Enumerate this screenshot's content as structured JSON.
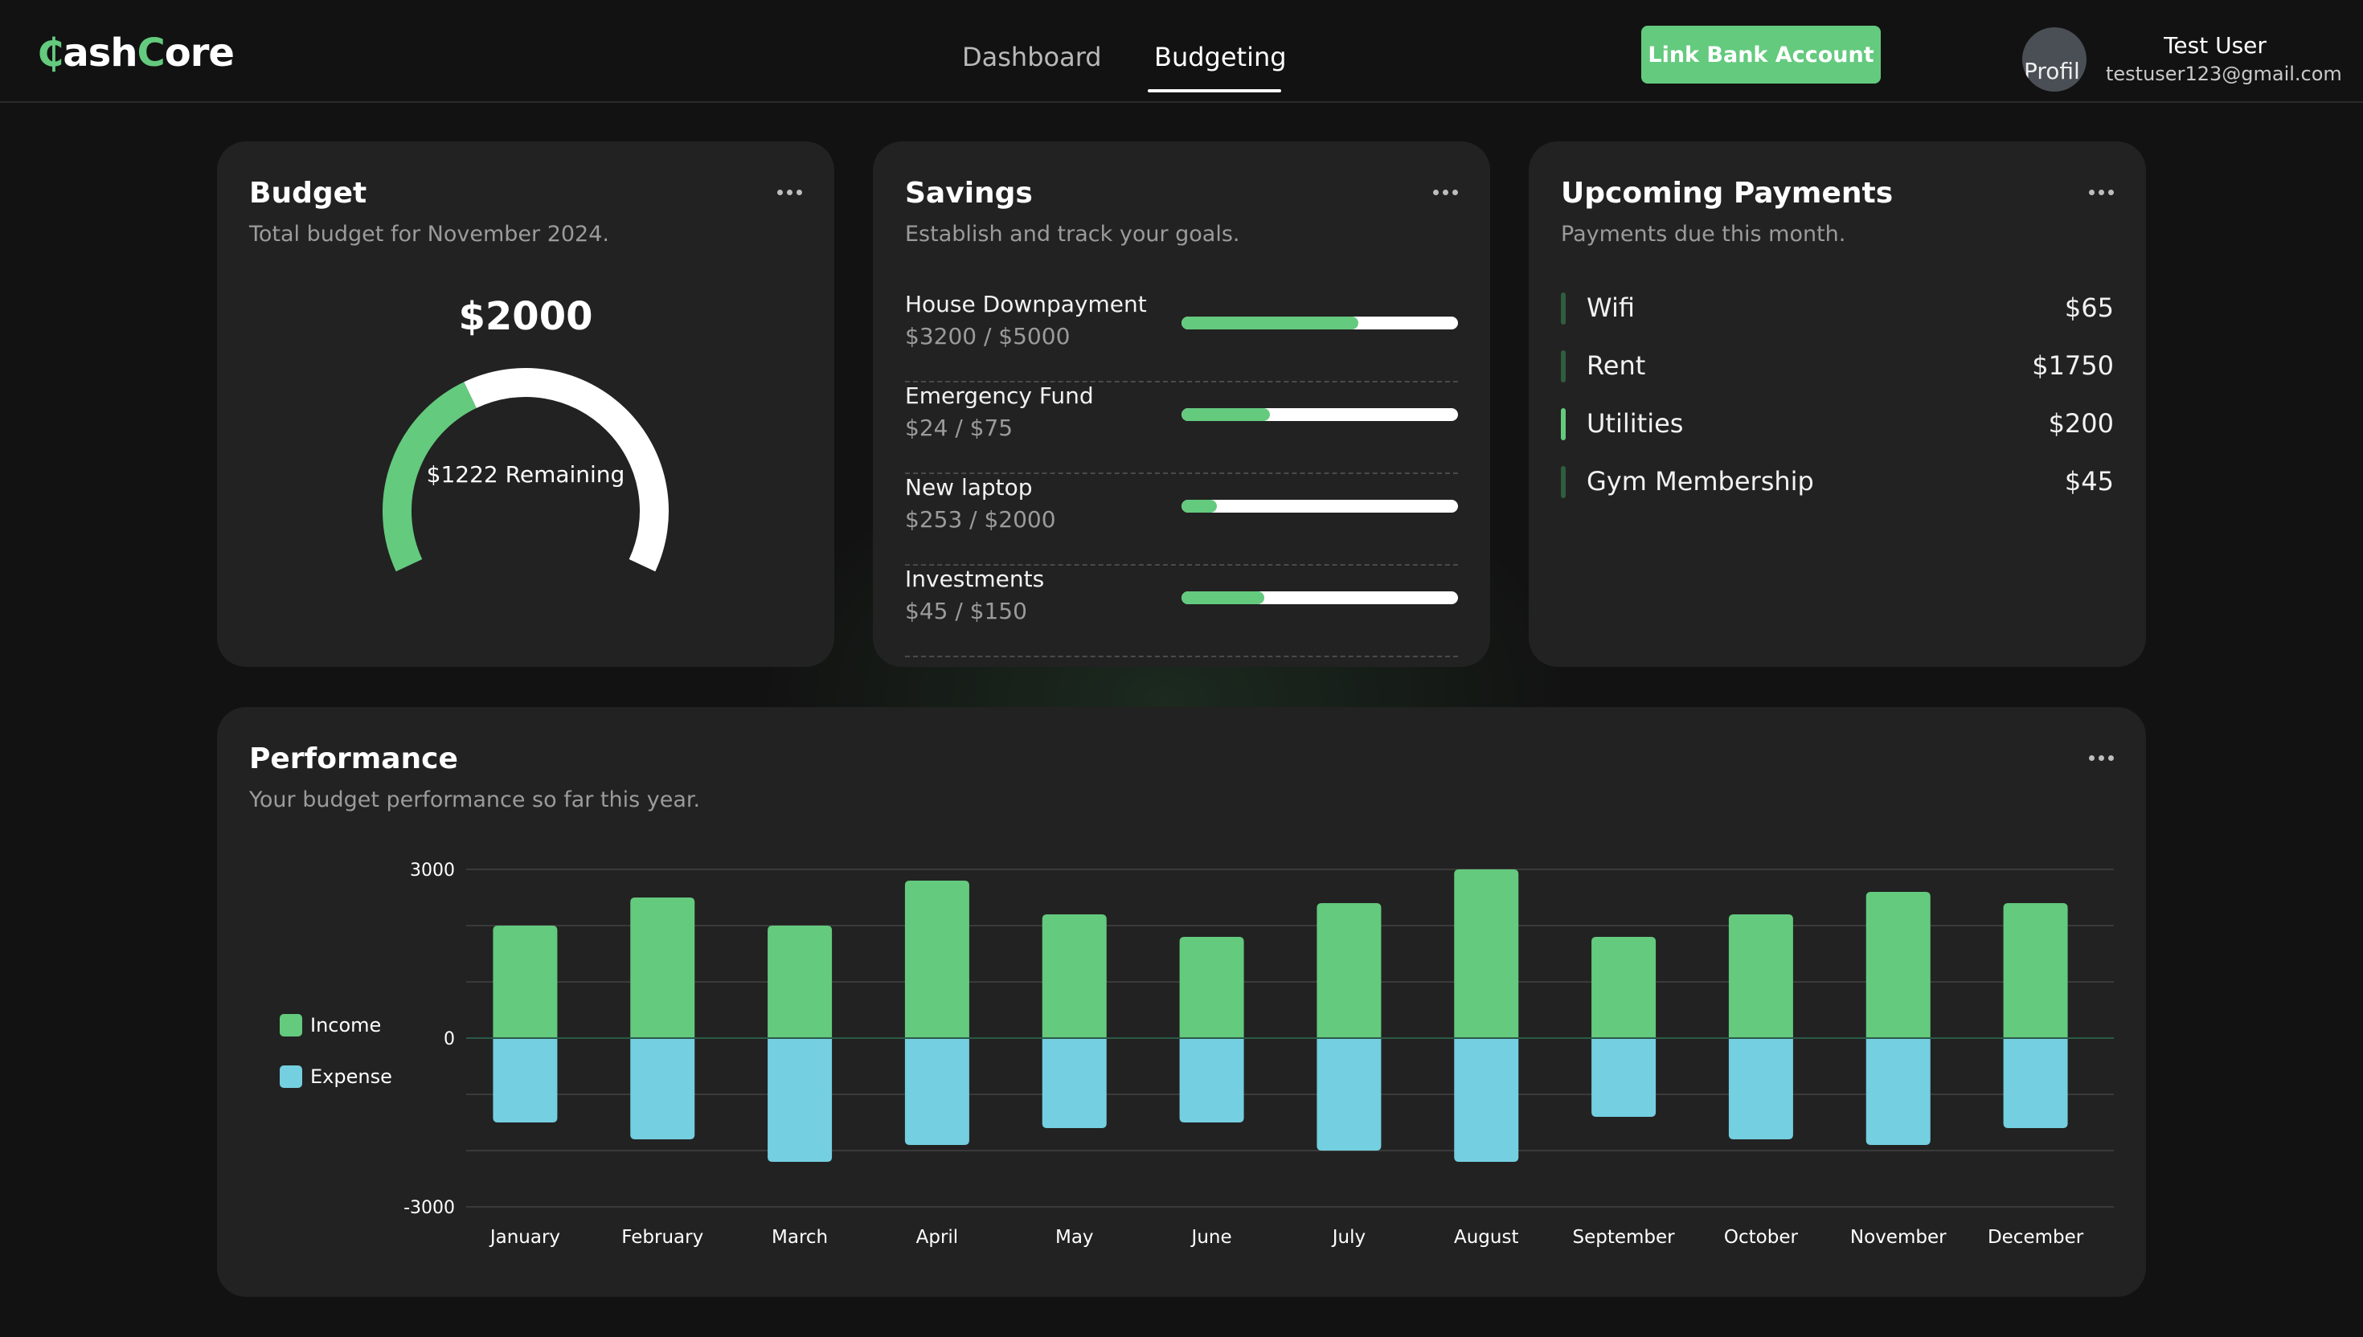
{
  "app": {
    "logo_glyph": "₵",
    "logo_rest_1": "ash",
    "logo_c": "C",
    "logo_rest_2": "ore"
  },
  "nav": {
    "tabs": [
      {
        "label": "Dashboard",
        "active": false
      },
      {
        "label": "Budgeting",
        "active": true
      }
    ]
  },
  "header": {
    "link_bank_label": "Link Bank Account",
    "avatar_alt": "Profil",
    "user_name": "Test User",
    "user_email": "testuser123@gmail.com"
  },
  "budget": {
    "title": "Budget",
    "subtitle": "Total budget for November 2024.",
    "total": "$2000",
    "remaining_text": "$1222 Remaining",
    "total_value": 2000,
    "remaining_value": 1222
  },
  "savings": {
    "title": "Savings",
    "subtitle": "Establish and track your goals.",
    "goals": [
      {
        "name": "House Downpayment",
        "amount": "$3200 / $5000",
        "current": 3200,
        "target": 5000
      },
      {
        "name": "Emergency Fund",
        "amount": "$24 / $75",
        "current": 24,
        "target": 75
      },
      {
        "name": "New laptop",
        "amount": "$253 / $2000",
        "current": 253,
        "target": 2000
      },
      {
        "name": "Investments",
        "amount": "$45 / $150",
        "current": 45,
        "target": 150
      }
    ]
  },
  "payments": {
    "title": "Upcoming Payments",
    "subtitle": "Payments due this month.",
    "items": [
      {
        "name": "Wifi",
        "amount": "$65"
      },
      {
        "name": "Rent",
        "amount": "$1750"
      },
      {
        "name": "Utilities",
        "amount": "$200"
      },
      {
        "name": "Gym Membership",
        "amount": "$45"
      }
    ]
  },
  "performance": {
    "title": "Performance",
    "subtitle": "Your budget performance so far this year."
  },
  "colors": {
    "accent": "#64ca7e",
    "income": "#64ca7e",
    "expense": "#74cfe0",
    "card": "#222222",
    "background": "#121212"
  },
  "chart_data": {
    "type": "bar",
    "categories": [
      "January",
      "February",
      "March",
      "April",
      "May",
      "June",
      "July",
      "August",
      "September",
      "October",
      "November",
      "December"
    ],
    "series": [
      {
        "name": "Income",
        "values": [
          2000,
          2500,
          2000,
          2800,
          2200,
          1800,
          2400,
          3000,
          1800,
          2200,
          2600,
          2400
        ]
      },
      {
        "name": "Expense",
        "values": [
          -1500,
          -1800,
          -2200,
          -1900,
          -1600,
          -1500,
          -2000,
          -2200,
          -1400,
          -1800,
          -1900,
          -1600
        ]
      }
    ],
    "ylim": [
      -3000,
      3000
    ],
    "yticks_labeled": [
      "3000",
      "0",
      "-3000"
    ],
    "grid": true,
    "legend": "left",
    "title": "",
    "xlabel": "",
    "ylabel": ""
  }
}
